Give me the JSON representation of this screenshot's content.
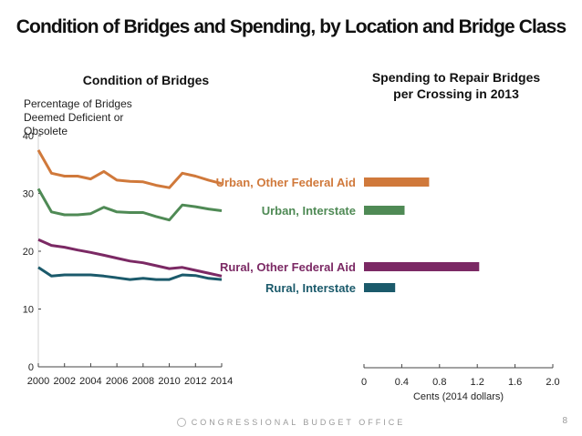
{
  "title": "Condition of Bridges and Spending, by Location and Bridge Class",
  "footer": {
    "organization": "CONGRESSIONAL BUDGET OFFICE",
    "page_number": "8",
    "seal_icon": "cbo-seal-icon"
  },
  "chart_data": [
    {
      "type": "line",
      "title": "Condition of Bridges",
      "ylabel": "Percentage of Bridges Deemed Deficient or Obsolete",
      "xlabel": "",
      "ylim": [
        0,
        40
      ],
      "yticks": [
        0,
        10,
        20,
        30,
        40
      ],
      "xlim": [
        2000,
        2014
      ],
      "xticks": [
        2000,
        2002,
        2004,
        2006,
        2008,
        2010,
        2012,
        2014
      ],
      "grid": false,
      "x": [
        2000,
        2001,
        2002,
        2003,
        2004,
        2005,
        2006,
        2007,
        2008,
        2009,
        2010,
        2011,
        2012,
        2013,
        2014
      ],
      "series": [
        {
          "name": "Urban, Other Federal Aid",
          "color": "#D0793B",
          "values": [
            37.5,
            33.5,
            33.0,
            33.0,
            32.5,
            33.8,
            32.3,
            32.1,
            32.0,
            31.4,
            31.0,
            33.5,
            33.0,
            32.3,
            31.7
          ]
        },
        {
          "name": "Urban, Interstate",
          "color": "#4F8A55",
          "values": [
            30.8,
            26.8,
            26.3,
            26.3,
            26.5,
            27.6,
            26.8,
            26.7,
            26.7,
            26.0,
            25.4,
            28.0,
            27.7,
            27.3,
            27.0
          ]
        },
        {
          "name": "Rural, Other Federal Aid",
          "color": "#7B2964",
          "values": [
            22.0,
            21.0,
            20.7,
            20.2,
            19.8,
            19.3,
            18.8,
            18.3,
            18.0,
            17.5,
            17.0,
            17.2,
            16.7,
            16.2,
            15.7
          ]
        },
        {
          "name": "Rural, Interstate",
          "color": "#1B5A6B",
          "values": [
            17.2,
            15.7,
            15.9,
            15.9,
            15.9,
            15.7,
            15.4,
            15.1,
            15.3,
            15.1,
            15.1,
            15.9,
            15.8,
            15.3,
            15.1
          ]
        }
      ]
    },
    {
      "type": "bar",
      "orientation": "horizontal",
      "title": "Spending to Repair Bridges per Crossing in 2013",
      "xlabel": "Cents (2014 dollars)",
      "xlim": [
        0,
        2.0
      ],
      "xticks": [
        "0",
        "0.4",
        "0.8",
        "1.2",
        "1.6",
        "2.0"
      ],
      "grid": false,
      "categories": [
        "Urban, Other Federal Aid",
        "Urban, Interstate",
        "Rural, Other Federal Aid",
        "Rural, Interstate"
      ],
      "values": [
        0.69,
        0.43,
        1.22,
        0.33
      ],
      "colors": [
        "#D0793B",
        "#4F8A55",
        "#7B2964",
        "#1B5A6B"
      ]
    }
  ]
}
